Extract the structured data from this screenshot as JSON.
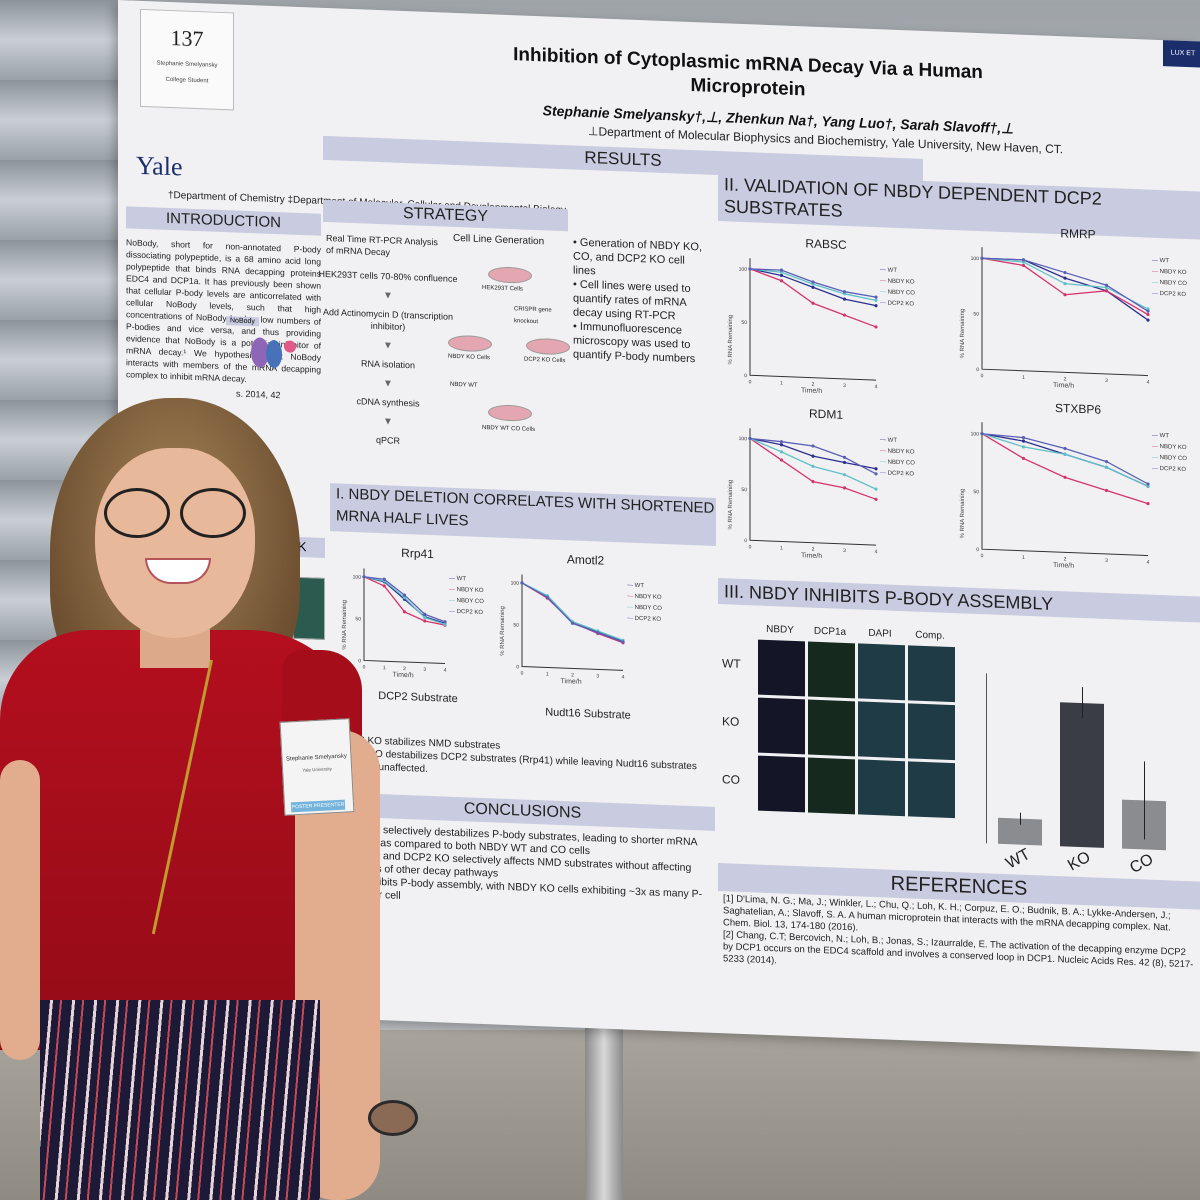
{
  "poster": {
    "number": "137",
    "presenter_card": "Stephanie Smelyansky",
    "presenter_card_sub": "College Student",
    "seal_text": "LUX ET",
    "title_line1": "Inhibition of Cytoplasmic mRNA Decay Via a Human",
    "title_line2": "Microprotein",
    "authors": "Stephanie Smelyansky†,⊥, Zhenkun Na†, Yang Luo†, Sarah Slavoff†,⊥",
    "affiliation_right": "⊥Department of Molecular Biophysics and Biochemistry, Yale University, New Haven, CT.",
    "logo": "Yale",
    "affiliation_left": "†Department of Chemistry  ‡Department of Molecular, Cellular and Developmental Biology",
    "results_header": "RESULTS",
    "intro": {
      "header": "INTRODUCTION",
      "text": "NoBody, short for non-annotated P-body dissociating polypeptide, is a 68 amino acid long polypeptide that binds RNA decapping proteins EDC4 and DCP1a. It has previously been shown that cellular P-body levels are anticorrelated with cellular NoBody levels, such that high concentrations of NoBody lead to low numbers of P-bodies and vice versa, and thus providing evidence that NoBody is a potential inhibitor of mRNA decay.¹ We hypothesize that NoBody interacts with members of the mRNA decapping complex to inhibit mRNA decay.",
      "figure_citation": "s. 2014, 42",
      "diagram_label": "NoBody",
      "fragment_header": "RK"
    },
    "strategy": {
      "header": "STRATEGY",
      "rtpcr_title": "Real Time RT-PCR Analysis of mRNA Decay",
      "steps": [
        "HEK293T cells 70-80% confluence",
        "Add Actinomycin D (transcription inhibitor)",
        "RNA isolation",
        "cDNA synthesis",
        "qPCR"
      ],
      "cell_title": "Cell Line Generation",
      "cells": [
        "HEK293T Cells",
        "CRISPR gene knockout",
        "NBDY KO Cells",
        "DCP2 KO Cells",
        "NBDY WT",
        "NBDY WT CO Cells"
      ],
      "bullets": [
        "Generation of NBDY KO, CO, and DCP2 KO cell lines",
        "Cell lines were used to quantify rates of mRNA decay using RT-PCR",
        "Immunofluorescence microscopy was used to quantify P-body numbers"
      ]
    },
    "section1": {
      "header": "I. NBDY DELETION CORRELATES WITH SHORTENED MRNA HALF LIVES",
      "charts": [
        {
          "title": "Rrp41",
          "caption": "DCP2 Substrate"
        },
        {
          "title": "Amotl2",
          "caption": "Nudt16 Substrate"
        }
      ],
      "notes": [
        "DCP2 KO stabilizes NMD substrates",
        "NBDY KO destabilizes DCP2 substrates (Rrp41) while leaving Nudt16 substrates (Amotl2) unaffected."
      ]
    },
    "section2": {
      "header": "II. VALIDATION OF NBDY DEPENDENT DCP2 SUBSTRATES",
      "charts": [
        {
          "title": "RABSC"
        },
        {
          "title": "RMRP"
        },
        {
          "title": "RDM1"
        },
        {
          "title": "STXBP6"
        }
      ]
    },
    "section3": {
      "header": "III. NBDY INHIBITS P-BODY ASSEMBLY",
      "columns": [
        "NBDY",
        "DCP1a",
        "DAPI",
        "Comp."
      ],
      "rows": [
        "WT",
        "KO",
        "CO"
      ],
      "bar_labels": [
        "WT",
        "KO",
        "CO"
      ],
      "bar_values": [
        0.18,
        1.0,
        0.34
      ],
      "bar_errors": [
        0.04,
        0.11,
        0.27
      ]
    },
    "conclusions": {
      "header": "CONCLUSIONS",
      "items": [
        "NBDY KO selectively destabilizes P-body substrates, leading to shorter mRNA half-lives, as compared to both NBDY WT and CO cells",
        "NBDY KO and DCP2 KO selectively affects NMD substrates without affecting substrates of other decay pathways",
        "NBDY inhibits P-body assembly, with NBDY KO cells exhibiting ~3x as many P-bodies per cell"
      ]
    },
    "references": {
      "header": "REFERENCES",
      "items": [
        "[1] D'Lima, N. G.; Ma, J.; Winkler, L.; Chu, Q.; Loh, K. H.; Corpuz, E. O.; Budnik, B. A.; Lykke-Andersen, J.; Saghatelian, A.; Slavoff, S. A. A human microprotein that interacts with the mRNA decapping complex. Nat. Chem. Biol. 13, 174-180 (2016).",
        "[2] Chang, C.T; Bercovich, N.; Loh, B.; Jonas, S.; Izaurralde, E. The activation of the decapping enzyme DCP2 by DCP1 occurs on the EDC4 scaffold and involves a conserved loop in DCP1. Nucleic Acids Res. 42 (8), 5217-5233 (2014)."
      ]
    },
    "chart_common": {
      "ylabel": "% RNA Remaining",
      "xlabel": "Time/h",
      "legend": [
        "WT",
        "NBDY KO",
        "NBDY CO",
        "DCP2 KO"
      ],
      "series_colors": [
        "#2b2f8f",
        "#d6336c",
        "#5fc0c8",
        "#5a5fb5"
      ],
      "x": [
        0,
        1,
        2,
        3,
        4
      ],
      "y_ticks": [
        "100",
        "50",
        "0"
      ]
    }
  },
  "badge": {
    "name": "Stephanie Smelyansky",
    "sub": "Yale University",
    "tag": "POSTER PRESENTER"
  },
  "chart_data": [
    {
      "type": "line",
      "title": "Rrp41",
      "x": [
        0,
        1,
        2,
        3,
        4
      ],
      "xlabel": "Time/h",
      "ylabel": "% RNA Remaining",
      "series": [
        {
          "name": "WT",
          "values": [
            100,
            95,
            75,
            55,
            48
          ]
        },
        {
          "name": "NBDY KO",
          "values": [
            100,
            90,
            60,
            50,
            46
          ]
        },
        {
          "name": "NBDY CO",
          "values": [
            100,
            96,
            77,
            54,
            47
          ]
        },
        {
          "name": "DCP2 KO",
          "values": [
            100,
            98,
            80,
            58,
            50
          ]
        }
      ]
    },
    {
      "type": "line",
      "title": "Amotl2",
      "x": [
        0,
        1,
        2,
        3,
        4
      ],
      "xlabel": "Time/h",
      "ylabel": "% RNA Remaining",
      "series": [
        {
          "name": "WT",
          "values": [
            100,
            85,
            55,
            45,
            35
          ]
        },
        {
          "name": "NBDY KO",
          "values": [
            100,
            83,
            55,
            43,
            33
          ]
        },
        {
          "name": "NBDY CO",
          "values": [
            100,
            86,
            56,
            46,
            36
          ]
        },
        {
          "name": "DCP2 KO",
          "values": [
            100,
            84,
            54,
            44,
            34
          ]
        }
      ]
    },
    {
      "type": "line",
      "title": "RABSC",
      "x": [
        0,
        1,
        2,
        3,
        4
      ],
      "xlabel": "Time/h",
      "ylabel": "% RNA Remaining",
      "series": [
        {
          "name": "WT",
          "values": [
            100,
            95,
            85,
            75,
            70
          ]
        },
        {
          "name": "NBDY KO",
          "values": [
            100,
            90,
            70,
            60,
            50
          ]
        },
        {
          "name": "NBDY CO",
          "values": [
            100,
            98,
            88,
            80,
            75
          ]
        },
        {
          "name": "DCP2 KO",
          "values": [
            100,
            100,
            90,
            82,
            78
          ]
        }
      ]
    },
    {
      "type": "line",
      "title": "RMRP",
      "x": [
        0,
        1,
        2,
        3,
        4
      ],
      "xlabel": "Time/h",
      "ylabel": "% RNA Remaining",
      "series": [
        {
          "name": "WT",
          "values": [
            100,
            100,
            85,
            75,
            50
          ]
        },
        {
          "name": "NBDY KO",
          "values": [
            100,
            95,
            70,
            75,
            55
          ]
        },
        {
          "name": "NBDY CO",
          "values": [
            100,
            98,
            80,
            78,
            60
          ]
        },
        {
          "name": "DCP2 KO",
          "values": [
            100,
            100,
            90,
            80,
            58
          ]
        }
      ]
    },
    {
      "type": "line",
      "title": "RDM1",
      "x": [
        0,
        1,
        2,
        3,
        4
      ],
      "xlabel": "Time/h",
      "ylabel": "% RNA Remaining",
      "series": [
        {
          "name": "WT",
          "values": [
            100,
            95,
            85,
            80,
            75
          ]
        },
        {
          "name": "NBDY KO",
          "values": [
            100,
            80,
            60,
            55,
            45
          ]
        },
        {
          "name": "NBDY CO",
          "values": [
            100,
            88,
            75,
            68,
            55
          ]
        },
        {
          "name": "DCP2 KO",
          "values": [
            100,
            98,
            95,
            85,
            70
          ]
        }
      ]
    },
    {
      "type": "line",
      "title": "STXBP6",
      "x": [
        0,
        1,
        2,
        3,
        4
      ],
      "xlabel": "Time/h",
      "ylabel": "% RNA Remaining",
      "series": [
        {
          "name": "WT",
          "values": [
            100,
            95,
            85,
            75,
            60
          ]
        },
        {
          "name": "NBDY KO",
          "values": [
            100,
            80,
            65,
            55,
            45
          ]
        },
        {
          "name": "NBDY CO",
          "values": [
            100,
            90,
            85,
            75,
            60
          ]
        },
        {
          "name": "DCP2 KO",
          "values": [
            100,
            98,
            90,
            80,
            62
          ]
        }
      ]
    },
    {
      "type": "bar",
      "title": "",
      "categories": [
        "WT",
        "KO",
        "CO"
      ],
      "values": [
        0.18,
        1.0,
        0.34
      ],
      "errors": [
        0.04,
        0.11,
        0.27
      ],
      "ylabel": ""
    }
  ]
}
